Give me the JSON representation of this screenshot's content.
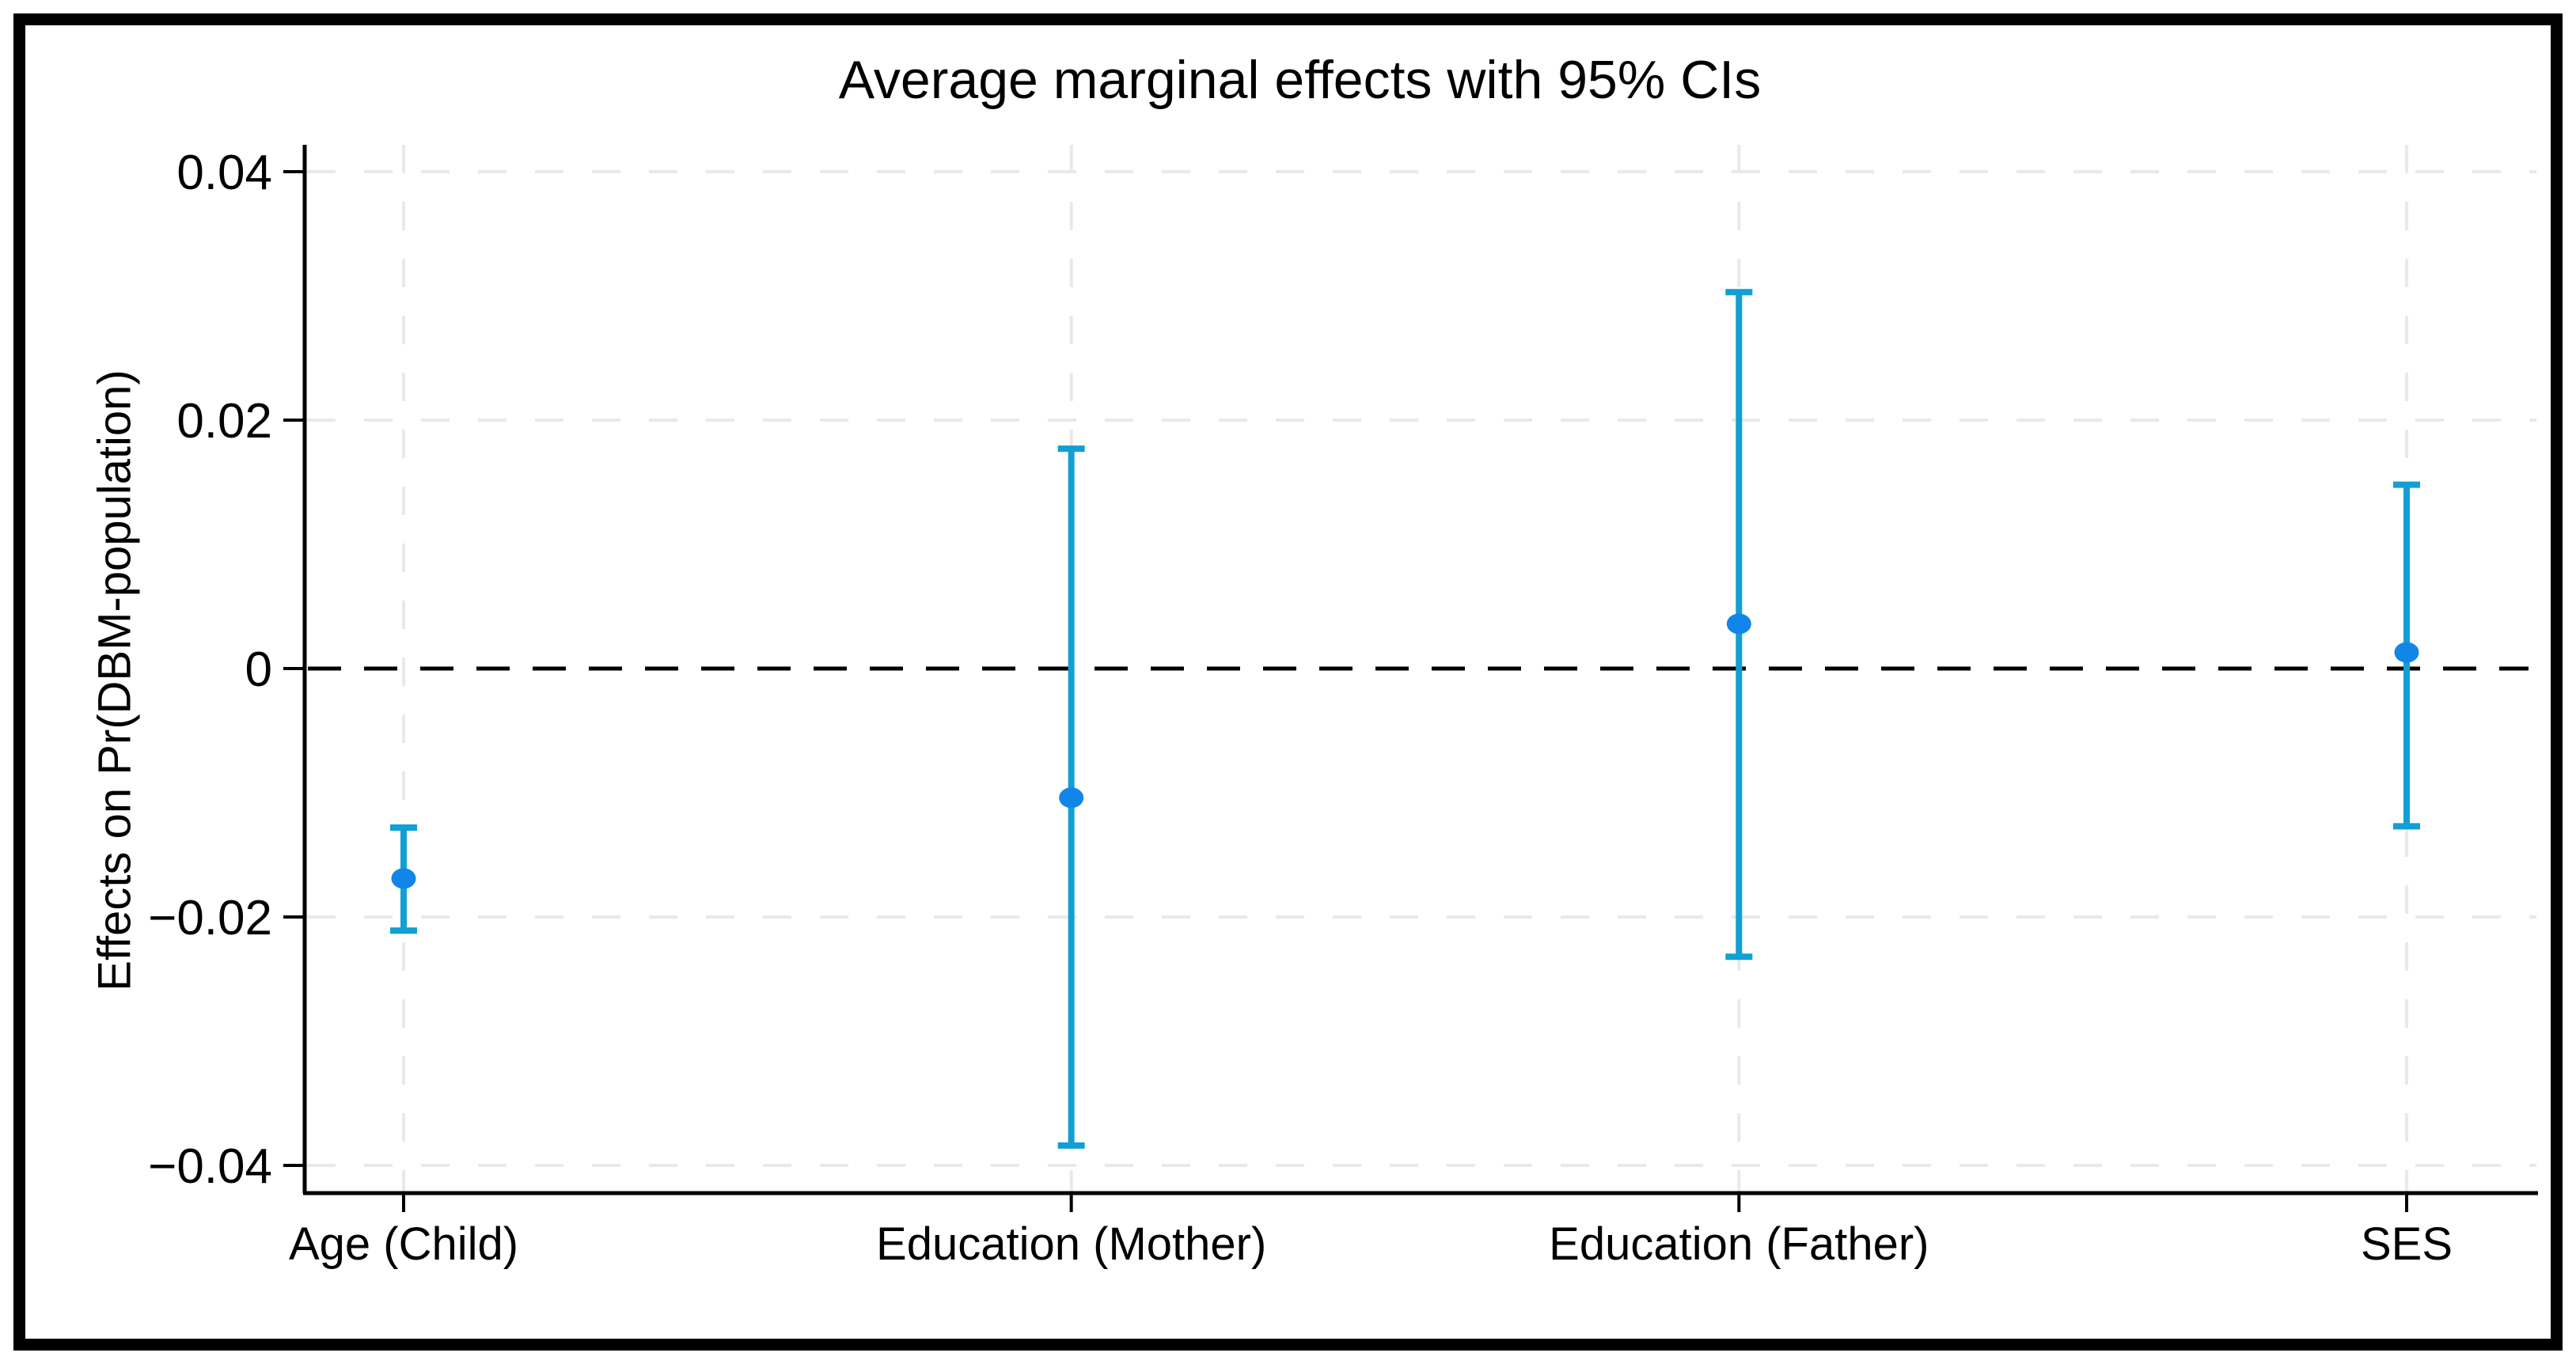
{
  "figure": {
    "background": "#ffffff",
    "border_color": "#000000"
  },
  "chart_data": {
    "type": "scatter",
    "subtype": "average-marginal-effects-with-ci",
    "title": "Average marginal effects with 95% CIs",
    "xlabel": "",
    "ylabel": "Effects on Pr(DBM-population)",
    "categories": [
      "Age (Child)",
      "Education (Mother)",
      "Education (Father)",
      "SES"
    ],
    "series": [
      {
        "name": "Average marginal effect",
        "values": [
          -0.0169,
          -0.0104,
          0.0036,
          0.0013
        ],
        "ci_low": [
          -0.0211,
          -0.0384,
          -0.0232,
          -0.0127
        ],
        "ci_high": [
          -0.0128,
          0.0177,
          0.0303,
          0.0148
        ]
      }
    ],
    "ylim": [
      -0.045,
      0.045
    ],
    "yticks": [
      0.04,
      0.02,
      0,
      -0.02,
      -0.04
    ],
    "ytick_labels": [
      "0.04",
      "0.02",
      "0",
      "−0.02",
      "−0.04"
    ],
    "grid": true,
    "zero_line": true,
    "legend": "none",
    "colors": {
      "ci_bar": "#119FD4",
      "marker": "#1186E8",
      "grid": "#E9E9E9",
      "zero_line": "#000000",
      "axis": "#000000"
    }
  }
}
